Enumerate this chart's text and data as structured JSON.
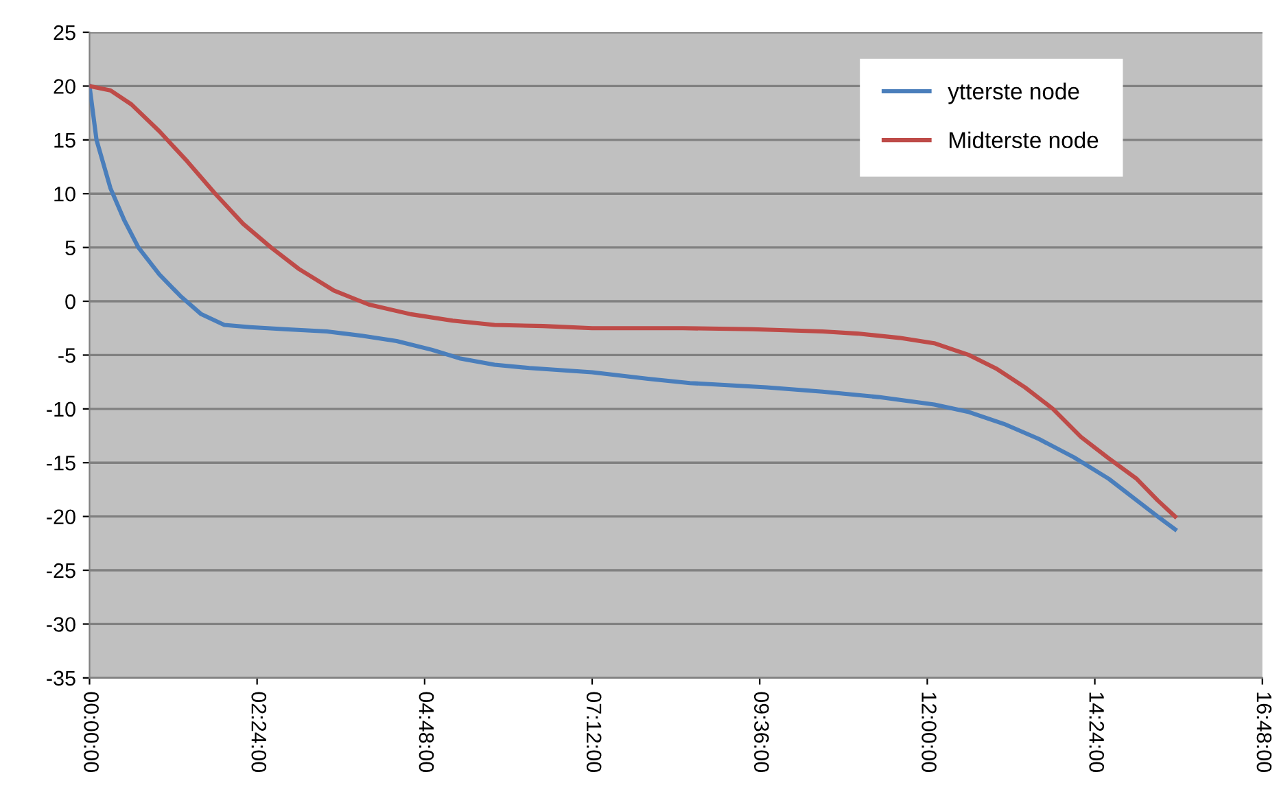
{
  "chart_data": {
    "type": "line",
    "xlim": [
      0,
      16.8
    ],
    "xticks": [
      {
        "value": 0,
        "label": "00:00:00"
      },
      {
        "value": 2.4,
        "label": "02:24:00"
      },
      {
        "value": 4.8,
        "label": "04:48:00"
      },
      {
        "value": 7.2,
        "label": "07:12:00"
      },
      {
        "value": 9.6,
        "label": "09:36:00"
      },
      {
        "value": 12,
        "label": "12:00:00"
      },
      {
        "value": 14.4,
        "label": "14:24:00"
      },
      {
        "value": 16.8,
        "label": "16:48:00"
      }
    ],
    "ylim": [
      -35,
      25
    ],
    "yticks": [
      -35,
      -30,
      -25,
      -20,
      -15,
      -10,
      -5,
      0,
      5,
      10,
      15,
      20,
      25
    ],
    "grid": "y",
    "legend": "top right",
    "marker": "none",
    "line_style": "solid",
    "series": [
      {
        "name": "ytterste node",
        "color": "#4a7ebb",
        "x": [
          0,
          0.1,
          0.3,
          0.5,
          0.7,
          1.0,
          1.3,
          1.6,
          1.93,
          2.3,
          2.8,
          3.4,
          3.9,
          4.4,
          4.9,
          5.3,
          5.8,
          6.3,
          7.2,
          8.0,
          8.6,
          9.7,
          10.5,
          11.3,
          12.1,
          12.6,
          13.1,
          13.6,
          14.1,
          14.6,
          15.0,
          15.3,
          15.55
        ],
        "values": [
          20,
          15,
          10.5,
          7.5,
          5,
          2.5,
          0.5,
          -1.2,
          -2.2,
          -2.4,
          -2.6,
          -2.8,
          -3.2,
          -3.7,
          -4.5,
          -5.3,
          -5.9,
          -6.2,
          -6.6,
          -7.2,
          -7.6,
          -8.0,
          -8.4,
          -8.9,
          -9.6,
          -10.3,
          -11.4,
          -12.8,
          -14.5,
          -16.5,
          -18.5,
          -20,
          -21.2
        ]
      },
      {
        "name": "Midterste node",
        "color": "#be4b48",
        "x": [
          0,
          0.3,
          0.6,
          1.0,
          1.4,
          1.8,
          2.2,
          2.6,
          3.0,
          3.5,
          4.0,
          4.6,
          5.2,
          5.8,
          6.5,
          7.2,
          8.5,
          9.5,
          10.5,
          11.0,
          11.6,
          12.1,
          12.6,
          13.0,
          13.4,
          13.8,
          14.2,
          14.6,
          15.0,
          15.3,
          15.55
        ],
        "values": [
          20,
          19.6,
          18.3,
          15.8,
          13,
          10,
          7.2,
          5,
          3,
          1,
          -0.3,
          -1.2,
          -1.8,
          -2.2,
          -2.3,
          -2.5,
          -2.5,
          -2.6,
          -2.8,
          -3,
          -3.4,
          -3.9,
          -5,
          -6.3,
          -8,
          -10,
          -12.6,
          -14.6,
          -16.5,
          -18.5,
          -20
        ]
      }
    ]
  }
}
